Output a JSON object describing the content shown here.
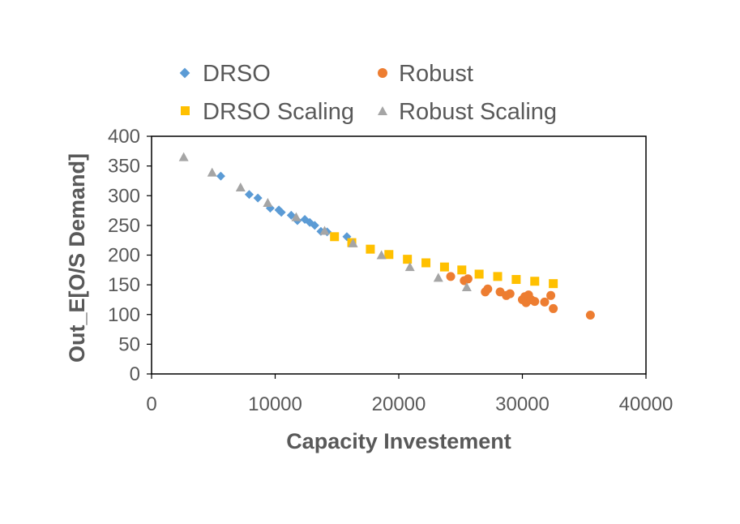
{
  "chart_data": {
    "type": "scatter",
    "title": "",
    "xlabel": "Capacity Investement",
    "ylabel": "Out_E[O/S Demand]",
    "xlim": [
      0,
      40000
    ],
    "ylim": [
      0,
      400
    ],
    "xticks": [
      0,
      10000,
      20000,
      30000,
      40000
    ],
    "yticks": [
      0,
      50,
      100,
      150,
      200,
      250,
      300,
      350,
      400
    ],
    "grid": false,
    "legend_position": "top",
    "series": [
      {
        "name": "DRSO",
        "marker": "diamond",
        "color": "#5B9BD5",
        "points": [
          [
            5600,
            333
          ],
          [
            7900,
            302
          ],
          [
            8600,
            296
          ],
          [
            9600,
            279
          ],
          [
            10300,
            276
          ],
          [
            10500,
            272
          ],
          [
            11300,
            267
          ],
          [
            11800,
            258
          ],
          [
            12400,
            260
          ],
          [
            12800,
            255
          ],
          [
            13200,
            250
          ],
          [
            13700,
            240
          ],
          [
            14200,
            239
          ],
          [
            15800,
            231
          ]
        ]
      },
      {
        "name": "Robust",
        "marker": "circle",
        "color": "#ED7D31",
        "points": [
          [
            24200,
            164
          ],
          [
            25300,
            157
          ],
          [
            25600,
            160
          ],
          [
            27000,
            138
          ],
          [
            27200,
            143
          ],
          [
            28200,
            138
          ],
          [
            28700,
            132
          ],
          [
            29000,
            135
          ],
          [
            30000,
            125
          ],
          [
            30200,
            130
          ],
          [
            30300,
            120
          ],
          [
            30500,
            133
          ],
          [
            30700,
            125
          ],
          [
            31000,
            122
          ],
          [
            31800,
            121
          ],
          [
            32300,
            132
          ],
          [
            32500,
            110
          ],
          [
            35500,
            99
          ]
        ]
      },
      {
        "name": "DRSO Scaling",
        "marker": "square",
        "color": "#FFC000",
        "points": [
          [
            14800,
            231
          ],
          [
            16200,
            221
          ],
          [
            17700,
            210
          ],
          [
            19200,
            201
          ],
          [
            20700,
            193
          ],
          [
            22200,
            187
          ],
          [
            23700,
            180
          ],
          [
            25100,
            175
          ],
          [
            26500,
            168
          ],
          [
            28000,
            164
          ],
          [
            29500,
            159
          ],
          [
            31000,
            156
          ],
          [
            32500,
            152
          ]
        ]
      },
      {
        "name": "Robust Scaling",
        "marker": "triangle",
        "color": "#A5A5A5",
        "points": [
          [
            2600,
            365
          ],
          [
            4900,
            339
          ],
          [
            7200,
            314
          ],
          [
            9400,
            288
          ],
          [
            11700,
            264
          ],
          [
            14000,
            241
          ],
          [
            16300,
            220
          ],
          [
            18600,
            200
          ],
          [
            20900,
            180
          ],
          [
            23200,
            162
          ],
          [
            25500,
            146
          ]
        ]
      }
    ]
  }
}
